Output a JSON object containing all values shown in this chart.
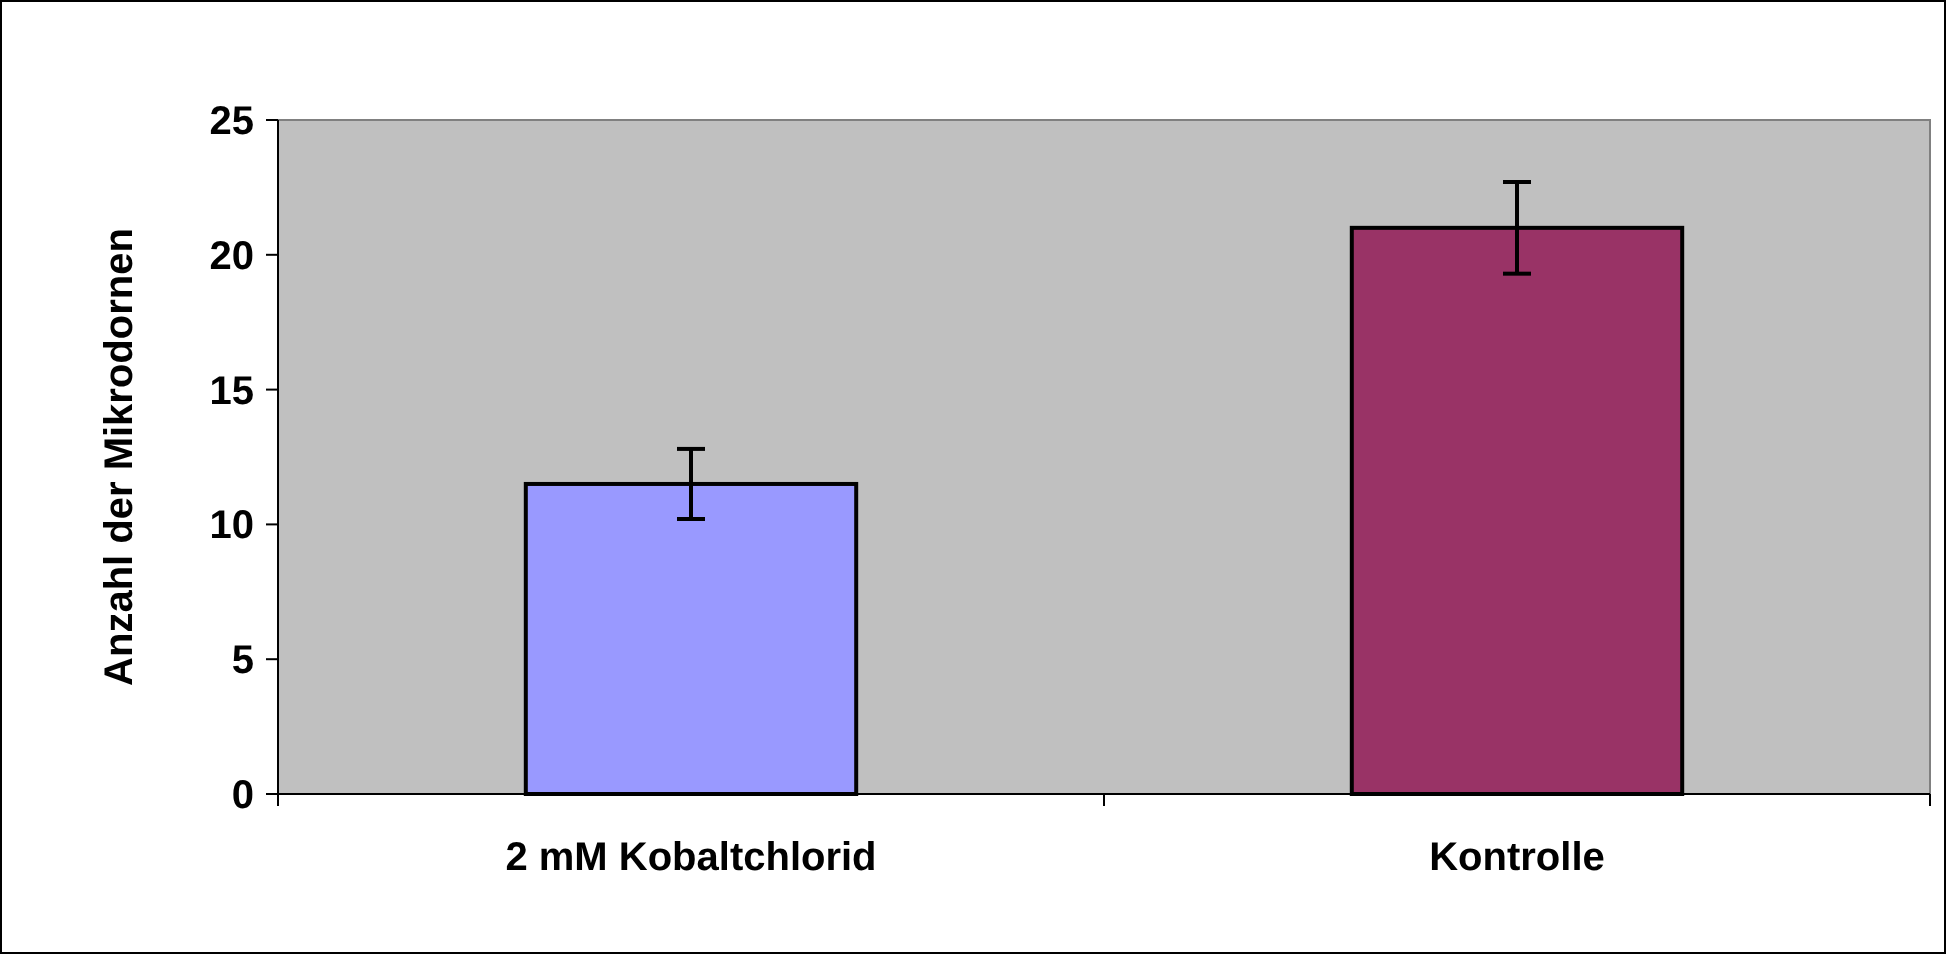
{
  "chart_data": {
    "type": "bar",
    "ylabel": "Anzahl der Mikrodornen",
    "categories": [
      "2 mM Kobaltchlorid",
      "Kontrolle"
    ],
    "values": [
      11.5,
      21
    ],
    "colors": [
      "#9999ff",
      "#993366"
    ],
    "errors": [
      1.3,
      1.7
    ],
    "ylim": [
      0,
      25
    ],
    "yticks": [
      0,
      5,
      10,
      15,
      20,
      25
    ],
    "grid": false
  }
}
